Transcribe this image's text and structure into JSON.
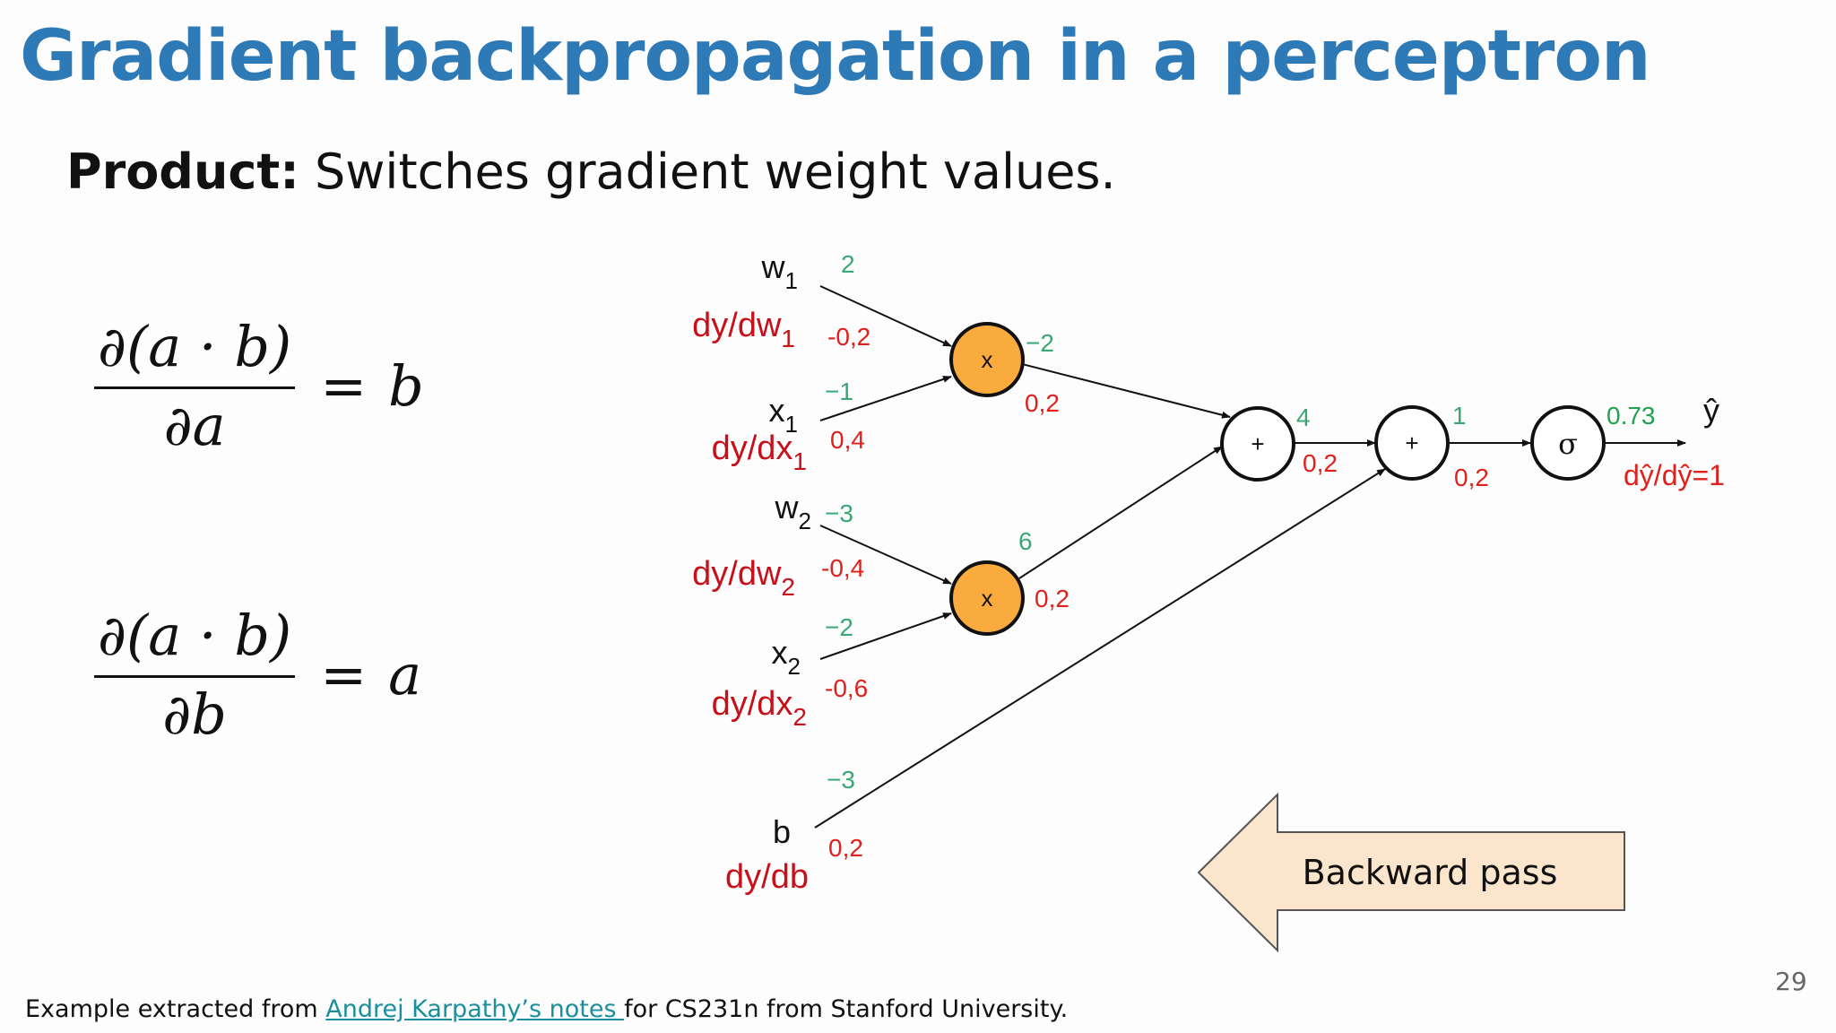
{
  "slide": {
    "title": "Gradient backpropagation in a perceptron",
    "subtitle_bold": "Product:",
    "subtitle_rest": " Switches gradient weight values.",
    "page_number": "29"
  },
  "formulas": [
    {
      "numerator": "∂(a · b)",
      "denominator": "∂a",
      "equals": "=",
      "result": "b"
    },
    {
      "numerator": "∂(a · b)",
      "denominator": "∂b",
      "equals": "=",
      "result": "a"
    }
  ],
  "diagram": {
    "nodes": {
      "mult1": "x",
      "mult2": "x",
      "add1": "+",
      "add2": "+",
      "sigmoid": "σ"
    },
    "inputs": {
      "w1": {
        "main": "w",
        "sub": "1",
        "grad_main": "dy/dw",
        "grad_sub": "1",
        "value": "2",
        "grad_value": "-0,2"
      },
      "x1": {
        "main": "x",
        "sub": "1",
        "grad_main": "dy/dx",
        "grad_sub": "1",
        "value": "−1",
        "grad_value": "0,4"
      },
      "w2": {
        "main": "w",
        "sub": "2",
        "grad_main": "dy/dw",
        "grad_sub": "2",
        "value": "−3",
        "grad_value": "-0,4"
      },
      "x2": {
        "main": "x",
        "sub": "2",
        "grad_main": "dy/dx",
        "grad_sub": "2",
        "value": "−2",
        "grad_value": "-0,6"
      },
      "b": {
        "main": "b",
        "grad_main": "dy/db",
        "value": "−3",
        "grad_value": "0,2"
      }
    },
    "edges": {
      "mult1_out": {
        "value": "−2",
        "grad_value": "0,2"
      },
      "mult2_out": {
        "value": "6",
        "grad_value": "0,2"
      },
      "add1_out": {
        "value": "4",
        "grad_value": "0,2"
      },
      "add2_out": {
        "value": "1",
        "grad_value": "0,2"
      },
      "sigmoid_out": {
        "value": "0.73",
        "grad_value": "dŷ/dŷ=1"
      }
    },
    "output_label": "ŷ",
    "backward_label": "Backward pass",
    "colors": {
      "value": "#3aa876",
      "gradient": "#e0201c",
      "gradient_label": "#c8101a",
      "mult_node": "#f9ab3e",
      "arrow_fill": "#fce5cd"
    }
  },
  "footer": {
    "prefix": "Example extracted from ",
    "link": "Andrej Karpathy’s notes ",
    "suffix": "for CS231n from Stanford University."
  }
}
